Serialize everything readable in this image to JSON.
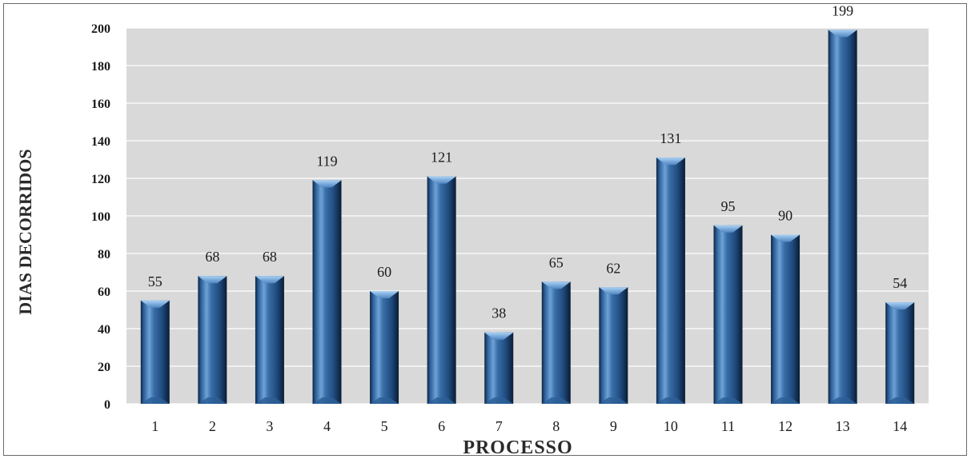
{
  "chart_data": {
    "type": "bar",
    "categories": [
      "1",
      "2",
      "3",
      "4",
      "5",
      "6",
      "7",
      "8",
      "9",
      "10",
      "11",
      "12",
      "13",
      "14"
    ],
    "values": [
      55,
      68,
      68,
      119,
      60,
      121,
      38,
      65,
      62,
      131,
      95,
      90,
      199,
      54
    ],
    "data_labels": [
      "55",
      "68",
      "68",
      "119",
      "60",
      "121",
      "38",
      "65",
      "62",
      "131",
      "95",
      "90",
      "199",
      "54"
    ],
    "xlabel": "PROCESSO",
    "ylabel": "DIAS DECORRIDOS",
    "ylim": [
      0,
      200
    ],
    "yticks": [
      0,
      20,
      40,
      60,
      80,
      100,
      120,
      140,
      160,
      180,
      200
    ],
    "ytick_labels": [
      "0",
      "20",
      "40",
      "60",
      "80",
      "100",
      "120",
      "140",
      "160",
      "180",
      "200"
    ],
    "grid": true,
    "legend": "none",
    "colors": {
      "plot_background": "#d9d9d9",
      "grid": "#ffffff",
      "bar_dark": "#0c2340",
      "bar_mid": "#3a6fa8",
      "bar_light": "#8fbce6",
      "bar_cap": "#7eb0e2"
    }
  }
}
